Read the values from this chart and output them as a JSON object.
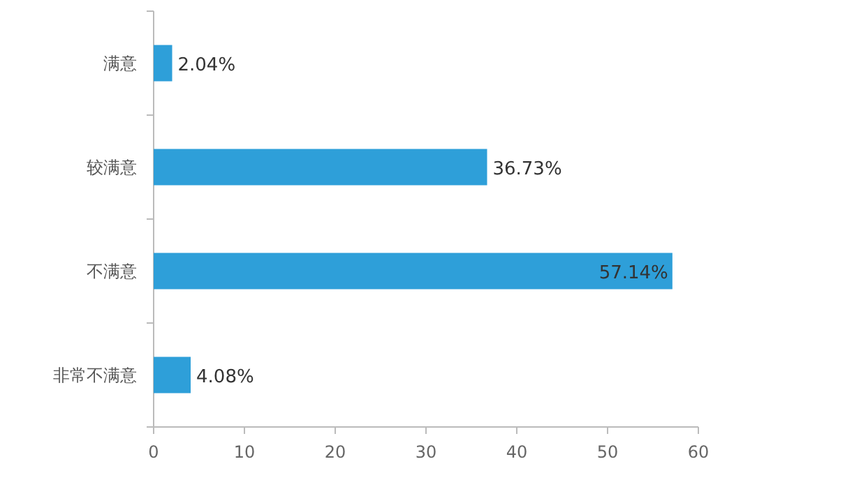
{
  "chart_data": {
    "type": "bar",
    "orientation": "horizontal",
    "categories": [
      "满意",
      "较满意",
      "不满意",
      "非常不满意"
    ],
    "values": [
      2.04,
      36.73,
      57.14,
      4.08
    ],
    "value_labels": [
      "2.04%",
      "36.73%",
      "57.14%",
      "4.08%"
    ],
    "color": "#2e9fd9",
    "xlim": [
      0,
      60
    ],
    "xticks": [
      0,
      10,
      20,
      30,
      40,
      50,
      60
    ]
  }
}
